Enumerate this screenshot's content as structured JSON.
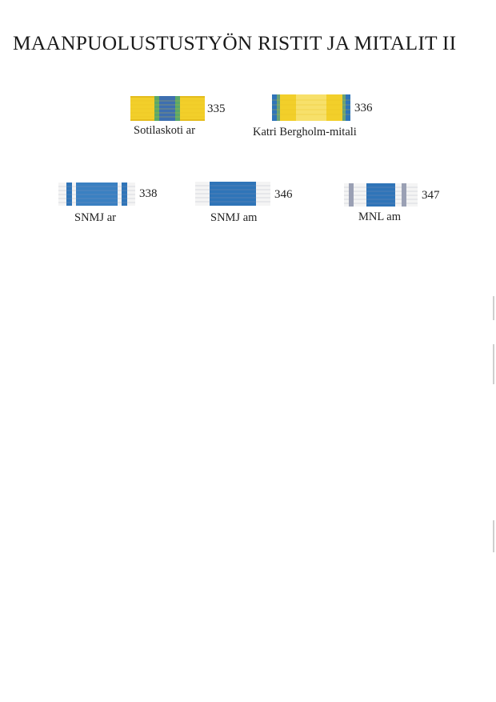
{
  "page": {
    "title": "MAANPUOLUSTUSTYÖN RISTIT JA MITALIT  II"
  },
  "ribbons": [
    {
      "number": "335",
      "caption": "Sotilaskoti ar",
      "pattern": "yellow-green-blue-center"
    },
    {
      "number": "336",
      "caption": "Katri Bergholm-mitali",
      "pattern": "yellow-blue-edges"
    },
    {
      "number": "338",
      "caption": "SNMJ ar",
      "pattern": "blue-white-stripes"
    },
    {
      "number": "346",
      "caption": "SNMJ am",
      "pattern": "blue-white-edges"
    },
    {
      "number": "347",
      "caption": "MNL am",
      "pattern": "blue-grey-white"
    }
  ],
  "colors": {
    "yellow": "#f2cf2a",
    "yellow_light": "#f7e06a",
    "green": "#5aa86a",
    "blue": "#2f74b8",
    "blue_light": "#4b8fcc",
    "white": "#f4f4f4",
    "grey": "#9aa0b4"
  }
}
